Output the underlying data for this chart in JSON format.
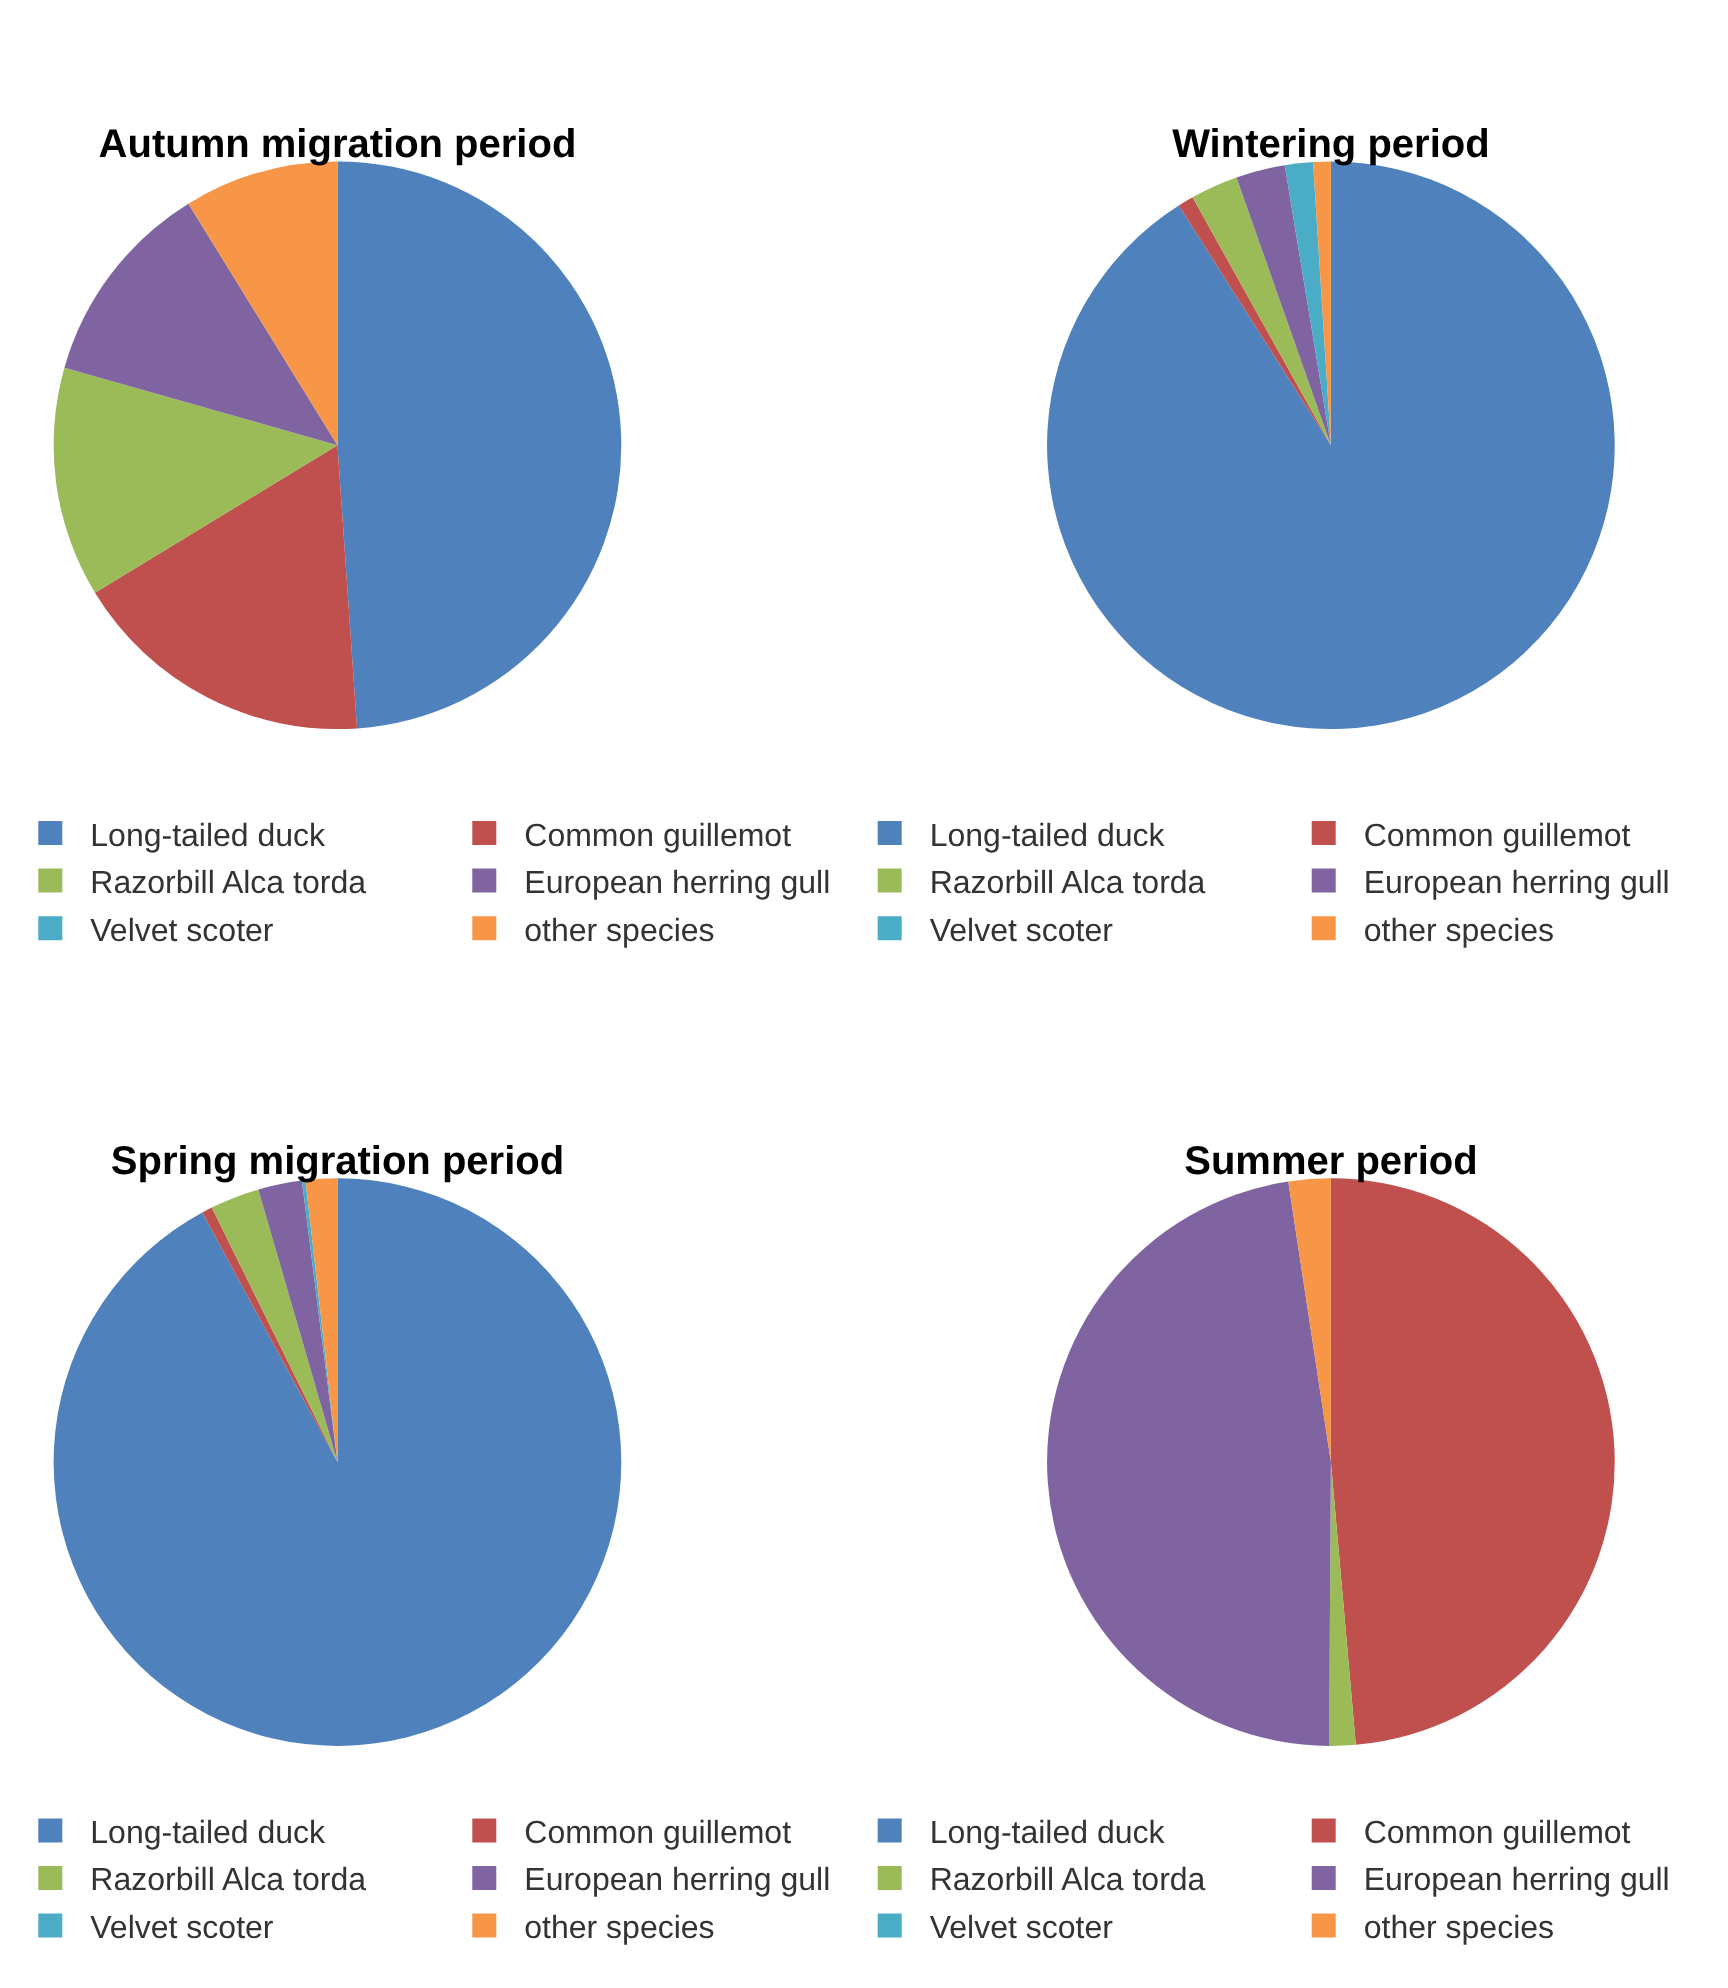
{
  "chart_data": [
    {
      "type": "pie",
      "title": "Autumn migration period",
      "categories": [
        "Long-tailed duck",
        "Common guillemot",
        "Razorbill Alca torda",
        "European herring gull",
        "Velvet scoter",
        "other species"
      ],
      "values": [
        48.9,
        17.4,
        13.1,
        11.8,
        0,
        8.8
      ],
      "colors": [
        "#4f81bd",
        "#c0504d",
        "#9bbb59",
        "#8064a2",
        "#4bacc6",
        "#f79646"
      ],
      "legend": "bottom"
    },
    {
      "type": "pie",
      "title": "Wintering period",
      "categories": [
        "Long-tailed duck",
        "Common guillemot",
        "Razorbill Alca torda",
        "European herring gull",
        "Velvet scoter",
        "other species"
      ],
      "values": [
        91.0,
        0.9,
        2.7,
        2.8,
        1.6,
        1.0
      ],
      "colors": [
        "#4f81bd",
        "#c0504d",
        "#9bbb59",
        "#8064a2",
        "#4bacc6",
        "#f79646"
      ],
      "legend": "bottom"
    },
    {
      "type": "pie",
      "title": "Spring migration period",
      "categories": [
        "Long-tailed duck",
        "Common guillemot",
        "Razorbill Alca torda",
        "European herring gull",
        "Velvet scoter",
        "other species"
      ],
      "values": [
        92.1,
        0.6,
        2.8,
        2.5,
        0.2,
        1.8
      ],
      "colors": [
        "#4f81bd",
        "#c0504d",
        "#9bbb59",
        "#8064a2",
        "#4bacc6",
        "#f79646"
      ],
      "legend": "bottom"
    },
    {
      "type": "pie",
      "title": "Summer period",
      "categories": [
        "Long-tailed duck",
        "Common guillemot",
        "Razorbill Alca torda",
        "European herring gull",
        "Velvet scoter",
        "other species"
      ],
      "values": [
        0,
        48.6,
        1.5,
        47.5,
        0,
        2.4
      ],
      "colors": [
        "#4f81bd",
        "#c0504d",
        "#9bbb59",
        "#8064a2",
        "#4bacc6",
        "#f79646"
      ],
      "legend": "bottom"
    }
  ]
}
